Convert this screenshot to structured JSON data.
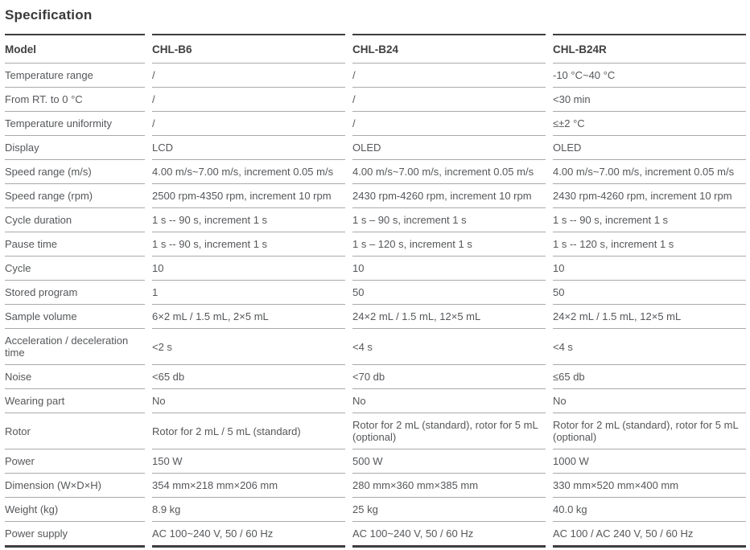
{
  "page_title": "Specification",
  "colors": {
    "text": "#55575a",
    "heading": "#3a3a3c",
    "border_light": "#a9a9a9",
    "border_dark": "#3d3d3f"
  },
  "table": {
    "columns": [
      "Model",
      "CHL-B6",
      "CHL-B24",
      "CHL-B24R"
    ],
    "rows": [
      {
        "label": "Temperature range",
        "values": [
          "/",
          "/",
          "-10 °C~40 °C"
        ]
      },
      {
        "label": "From RT. to 0 °C",
        "values": [
          "/",
          "/",
          "<30 min"
        ]
      },
      {
        "label": "Temperature uniformity",
        "values": [
          "/",
          "/",
          "≤±2 °C"
        ]
      },
      {
        "label": "Display",
        "values": [
          "LCD",
          "OLED",
          "OLED"
        ]
      },
      {
        "label": "Speed range (m/s)",
        "values": [
          "4.00 m/s~7.00 m/s, increment 0.05 m/s",
          "4.00 m/s~7.00 m/s, increment 0.05 m/s",
          "4.00 m/s~7.00 m/s, increment 0.05 m/s"
        ]
      },
      {
        "label": "Speed range (rpm)",
        "values": [
          "2500 rpm-4350 rpm, increment 10 rpm",
          "2430 rpm-4260 rpm, increment 10 rpm",
          "2430 rpm-4260 rpm, increment 10 rpm"
        ]
      },
      {
        "label": "Cycle duration",
        "values": [
          "1 s -- 90 s, increment 1 s",
          "1 s – 90 s, increment 1 s",
          "1 s -- 90 s, increment 1 s"
        ]
      },
      {
        "label": "Pause time",
        "values": [
          "1 s -- 90 s, increment 1 s",
          "1 s – 120 s, increment 1 s",
          "1 s -- 120 s, increment 1 s"
        ]
      },
      {
        "label": "Cycle",
        "values": [
          "10",
          "10",
          "10"
        ]
      },
      {
        "label": "Stored program",
        "values": [
          "1",
          "50",
          "50"
        ]
      },
      {
        "label": "Sample volume",
        "values": [
          "6×2 mL / 1.5 mL, 2×5 mL",
          "24×2 mL / 1.5 mL, 12×5 mL",
          "24×2 mL / 1.5 mL, 12×5 mL"
        ]
      },
      {
        "label": "Acceleration / deceleration time",
        "values": [
          "<2 s",
          "<4 s",
          "<4 s"
        ]
      },
      {
        "label": "Noise",
        "values": [
          "<65 db",
          "<70 db",
          "≤65 db"
        ]
      },
      {
        "label": "Wearing part",
        "values": [
          "No",
          "No",
          "No"
        ]
      },
      {
        "label": "Rotor",
        "values": [
          "Rotor for 2 mL / 5 mL (standard)",
          "Rotor for 2 mL (standard), rotor for 5 mL (optional)",
          "Rotor for 2 mL (standard), rotor for 5 mL (optional)"
        ]
      },
      {
        "label": "Power",
        "values": [
          "150 W",
          "500 W",
          "1000 W"
        ]
      },
      {
        "label": "Dimension (W×D×H)",
        "values": [
          "354 mm×218 mm×206 mm",
          "280 mm×360 mm×385 mm",
          "330 mm×520 mm×400 mm"
        ]
      },
      {
        "label": "Weight (kg)",
        "values": [
          "8.9 kg",
          "25 kg",
          "40.0 kg"
        ]
      },
      {
        "label": "Power supply",
        "values": [
          "AC 100~240 V, 50 / 60 Hz",
          "AC 100~240 V, 50 / 60 Hz",
          "AC 100 / AC 240 V, 50 / 60 Hz"
        ]
      }
    ]
  }
}
